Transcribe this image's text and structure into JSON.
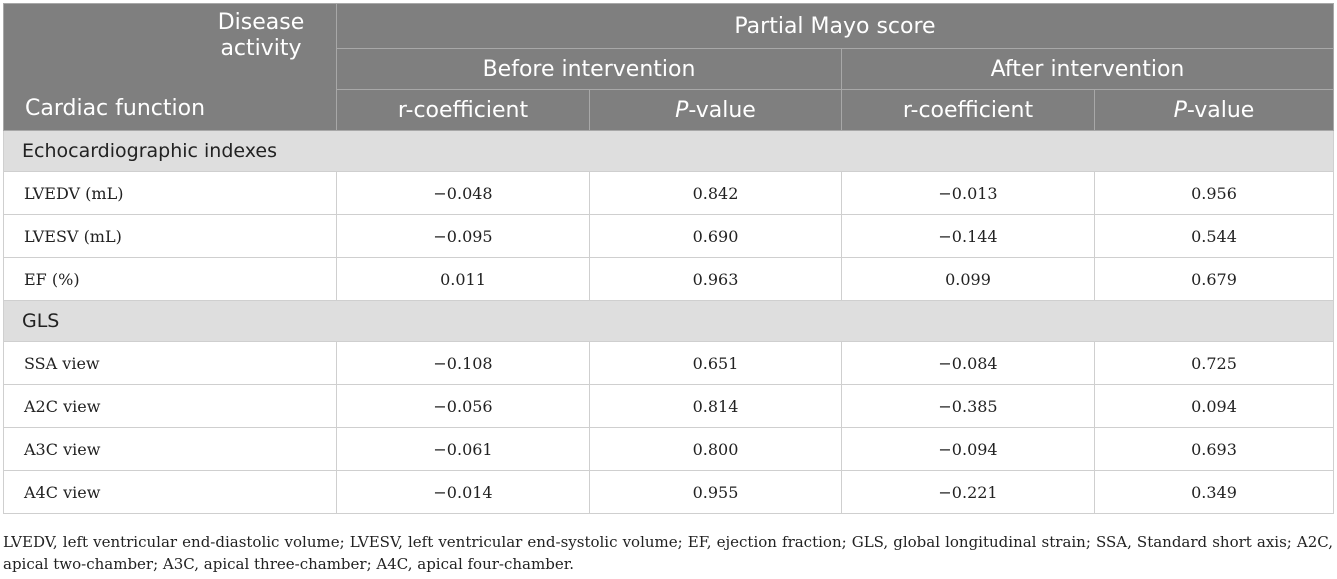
{
  "header": {
    "disease_activity": "Disease activity",
    "cardiac_function": "Cardiac function",
    "partial_mayo": "Partial Mayo score",
    "before": "Before intervention",
    "after": "After intervention",
    "r_coef_1": "r-coefficient",
    "p_letter_1": "P",
    "p_suffix_1": "-value",
    "r_coef_2": "r-coefficient",
    "p_letter_2": "P",
    "p_suffix_2": "-value"
  },
  "sections": [
    {
      "title": "Echocardiographic indexes",
      "rows": [
        {
          "label": "LVEDV (mL)",
          "r_before": "−0.048",
          "p_before": "0.842",
          "r_after": "−0.013",
          "p_after": "0.956"
        },
        {
          "label": "LVESV (mL)",
          "r_before": "−0.095",
          "p_before": "0.690",
          "r_after": "−0.144",
          "p_after": "0.544"
        },
        {
          "label": "EF (%)",
          "r_before": "0.011",
          "p_before": "0.963",
          "r_after": "0.099",
          "p_after": "0.679"
        }
      ]
    },
    {
      "title": "GLS",
      "rows": [
        {
          "label": "SSA view",
          "r_before": "−0.108",
          "p_before": "0.651",
          "r_after": "−0.084",
          "p_after": "0.725"
        },
        {
          "label": "A2C view",
          "r_before": "−0.056",
          "p_before": "0.814",
          "r_after": "−0.385",
          "p_after": "0.094"
        },
        {
          "label": "A3C view",
          "r_before": "−0.061",
          "p_before": "0.800",
          "r_after": "−0.094",
          "p_after": "0.693"
        },
        {
          "label": "A4C view",
          "r_before": "−0.014",
          "p_before": "0.955",
          "r_after": "−0.221",
          "p_after": "0.349"
        }
      ]
    }
  ],
  "footnote": "LVEDV, left ventricular end-diastolic volume; LVESV, left ventricular end-systolic volume; EF, ejection fraction; GLS, global longitudinal strain; SSA, Standard short axis; A2C, apical two-chamber; A3C, apical three-chamber; A4C, apical four-chamber."
}
